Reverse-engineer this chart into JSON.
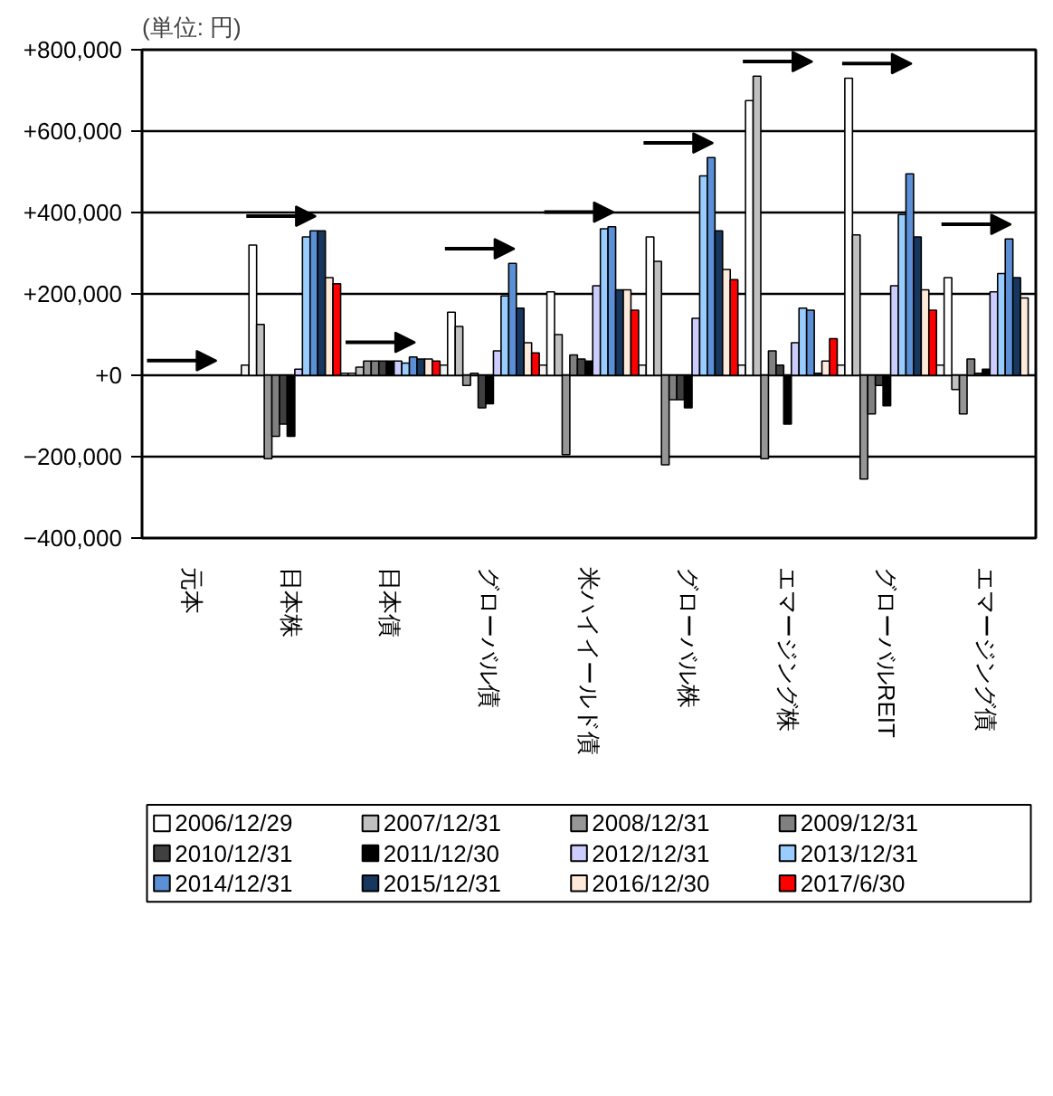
{
  "chart_data": {
    "type": "bar",
    "ylabel": "(単位: 円)",
    "categories": [
      "元本",
      "日本株",
      "日本債",
      "グローバル債",
      "米ハイイールド債",
      "グローバル株",
      "エマージング株",
      "グローバルREIT",
      "エマージング債"
    ],
    "ylim": [
      -400000,
      800000
    ],
    "yticks": [
      {
        "value": 800000,
        "label": "+800,000"
      },
      {
        "value": 600000,
        "label": "+600,000"
      },
      {
        "value": 400000,
        "label": "+400,000"
      },
      {
        "value": 200000,
        "label": "+200,000"
      },
      {
        "value": 0,
        "label": "+0"
      },
      {
        "value": -200000,
        "label": "−200,000"
      },
      {
        "value": -400000,
        "label": "−400,000"
      }
    ],
    "grid": "y",
    "legend": "bottom",
    "series": [
      {
        "color": "#f2f2f2",
        "values": [
          null,
          25000,
          5000,
          25000,
          25000,
          25000,
          25000,
          25000,
          25000
        ]
      },
      {
        "name": "2006/12/29",
        "color": "#ffffff",
        "values": [
          null,
          320000,
          5000,
          155000,
          205000,
          340000,
          675000,
          730000,
          240000
        ]
      },
      {
        "name": "2007/12/31",
        "color": "#c0c0c0",
        "values": [
          null,
          125000,
          20000,
          120000,
          100000,
          280000,
          735000,
          345000,
          -35000
        ]
      },
      {
        "name": "2008/12/31",
        "color": "#969696",
        "values": [
          null,
          -205000,
          35000,
          -25000,
          -195000,
          -220000,
          -205000,
          -255000,
          -95000
        ]
      },
      {
        "name": "2009/12/31",
        "color": "#808080",
        "values": [
          null,
          -150000,
          35000,
          5000,
          50000,
          -60000,
          60000,
          -95000,
          40000
        ]
      },
      {
        "name": "2010/12/31",
        "color": "#404040",
        "values": [
          null,
          -120000,
          35000,
          -80000,
          40000,
          -60000,
          25000,
          -25000,
          5000
        ]
      },
      {
        "name": "2011/12/30",
        "color": "#000000",
        "values": [
          null,
          -150000,
          35000,
          -70000,
          35000,
          -80000,
          -120000,
          -75000,
          15000
        ]
      },
      {
        "name": "2012/12/31",
        "color": "#ccccff",
        "values": [
          null,
          15000,
          35000,
          60000,
          220000,
          140000,
          80000,
          220000,
          205000
        ]
      },
      {
        "name": "2013/12/31",
        "color": "#99ccff",
        "values": [
          null,
          340000,
          30000,
          195000,
          360000,
          490000,
          165000,
          395000,
          250000
        ]
      },
      {
        "name": "2014/12/31",
        "color": "#5b8fd6",
        "values": [
          null,
          355000,
          45000,
          275000,
          365000,
          535000,
          160000,
          495000,
          335000
        ]
      },
      {
        "name": "2015/12/31",
        "color": "#17375e",
        "values": [
          null,
          355000,
          40000,
          165000,
          210000,
          355000,
          5000,
          340000,
          240000
        ]
      },
      {
        "name": "2016/12/30",
        "color": "#fdeada",
        "values": [
          null,
          240000,
          40000,
          80000,
          210000,
          260000,
          35000,
          210000,
          190000
        ]
      },
      {
        "name": "2017/6/30",
        "color": "#ff0000",
        "values": [
          null,
          225000,
          35000,
          55000,
          160000,
          235000,
          90000,
          160000,
          null
        ]
      }
    ]
  }
}
